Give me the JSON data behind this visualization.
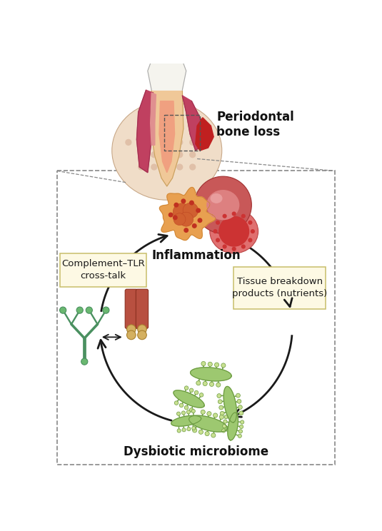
{
  "bg_color": "#ffffff",
  "fig_width": 5.35,
  "fig_height": 7.44,
  "dpi": 100,
  "label_inflammation": "Inflammation",
  "label_complement": "Complement–TLR\ncross-talk",
  "label_tissue": "Tissue breakdown\nproducts (nutrients)",
  "label_dysbiotic": "Dysbiotic microbiome",
  "label_periodontal": "Periodontal\nbone loss",
  "box_facecolor": "#fdf9e4",
  "box_edgecolor": "#c8be6a",
  "arrow_color": "#1a1a1a",
  "dashed_color": "#888888",
  "tooth_crown": "#f5f4ee",
  "tooth_root": "#f0c898",
  "tooth_gum_left": "#c85060",
  "tooth_bone": "#f0ddc8",
  "tooth_bone_dots": "#e8c8b8",
  "pulp": "#f0a080",
  "inflamed": "#cc2020",
  "neutrophil_outer": "#e8a050",
  "neutrophil_inner": "#d4784a",
  "rbc_large": "#cd5c5c",
  "rbc_large_inner": "#e07878",
  "rbc_small_outer": "#e88080",
  "rbc_dots": "#cc4444",
  "bacteria_body": "#9dc870",
  "bacteria_edge": "#6a9940",
  "bacteria_flagella": "#7ab050",
  "bacteria_tip": "#d8e8a8",
  "complement_stem": "#4a9060",
  "complement_ball": "#6ab870",
  "tlr_body": "#b85040",
  "tlr_ball": "#d4b060"
}
